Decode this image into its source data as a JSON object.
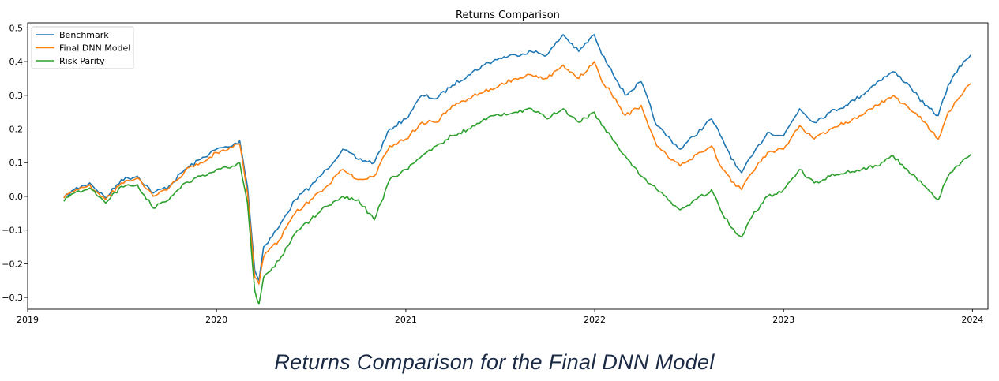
{
  "chart_data": {
    "type": "line",
    "title": "Returns Comparison",
    "xlabel": "",
    "ylabel": "",
    "x_axis_kind": "time",
    "xlim": [
      "2019-01-01",
      "2024-01-31"
    ],
    "ylim": [
      -0.335,
      0.515
    ],
    "x_ticks": [
      "2019-01-01",
      "2020-01-01",
      "2021-01-01",
      "2022-01-01",
      "2023-01-01",
      "2024-01-01"
    ],
    "x_tick_labels": [
      "2019",
      "2020",
      "2021",
      "2022",
      "2023",
      "2024"
    ],
    "y_ticks": [
      -0.3,
      -0.2,
      -0.1,
      0.0,
      0.1,
      0.2,
      0.3,
      0.4,
      0.5
    ],
    "y_tick_labels": [
      "−0.3",
      "−0.2",
      "−0.1",
      "0.0",
      "0.1",
      "0.2",
      "0.3",
      "0.4",
      "0.5"
    ],
    "grid": false,
    "legend_position": "top-left",
    "series": [
      {
        "name": "Benchmark",
        "color": "#1f77b4",
        "points": [
          [
            "2019-03-12",
            -0.005
          ],
          [
            "2019-04-01",
            0.02
          ],
          [
            "2019-05-01",
            0.04
          ],
          [
            "2019-06-01",
            -0.005
          ],
          [
            "2019-07-01",
            0.05
          ],
          [
            "2019-08-01",
            0.06
          ],
          [
            "2019-09-01",
            0.01
          ],
          [
            "2019-10-01",
            0.03
          ],
          [
            "2019-11-01",
            0.08
          ],
          [
            "2019-12-01",
            0.11
          ],
          [
            "2020-01-01",
            0.14
          ],
          [
            "2020-02-01",
            0.15
          ],
          [
            "2020-02-15",
            0.165
          ],
          [
            "2020-03-01",
            0.03
          ],
          [
            "2020-03-15",
            -0.22
          ],
          [
            "2020-03-23",
            -0.25
          ],
          [
            "2020-04-01",
            -0.15
          ],
          [
            "2020-05-01",
            -0.09
          ],
          [
            "2020-06-01",
            -0.01
          ],
          [
            "2020-07-01",
            0.03
          ],
          [
            "2020-08-01",
            0.08
          ],
          [
            "2020-09-01",
            0.14
          ],
          [
            "2020-10-01",
            0.11
          ],
          [
            "2020-11-01",
            0.1
          ],
          [
            "2020-12-01",
            0.2
          ],
          [
            "2021-01-01",
            0.23
          ],
          [
            "2021-02-01",
            0.3
          ],
          [
            "2021-03-01",
            0.29
          ],
          [
            "2021-04-01",
            0.33
          ],
          [
            "2021-05-01",
            0.36
          ],
          [
            "2021-06-01",
            0.39
          ],
          [
            "2021-07-01",
            0.41
          ],
          [
            "2021-08-01",
            0.42
          ],
          [
            "2021-09-01",
            0.43
          ],
          [
            "2021-10-01",
            0.42
          ],
          [
            "2021-11-01",
            0.48
          ],
          [
            "2021-12-01",
            0.43
          ],
          [
            "2021-12-31",
            0.48
          ],
          [
            "2022-01-15",
            0.42
          ],
          [
            "2022-02-01",
            0.38
          ],
          [
            "2022-03-01",
            0.3
          ],
          [
            "2022-04-01",
            0.34
          ],
          [
            "2022-05-01",
            0.21
          ],
          [
            "2022-06-15",
            0.14
          ],
          [
            "2022-08-15",
            0.23
          ],
          [
            "2022-09-01",
            0.18
          ],
          [
            "2022-10-01",
            0.09
          ],
          [
            "2022-10-12",
            0.07
          ],
          [
            "2022-11-01",
            0.12
          ],
          [
            "2022-12-01",
            0.19
          ],
          [
            "2023-01-01",
            0.18
          ],
          [
            "2023-02-01",
            0.26
          ],
          [
            "2023-03-01",
            0.22
          ],
          [
            "2023-04-01",
            0.25
          ],
          [
            "2023-05-01",
            0.27
          ],
          [
            "2023-06-01",
            0.3
          ],
          [
            "2023-07-01",
            0.34
          ],
          [
            "2023-08-01",
            0.37
          ],
          [
            "2023-09-01",
            0.33
          ],
          [
            "2023-10-01",
            0.27
          ],
          [
            "2023-10-27",
            0.24
          ],
          [
            "2023-11-15",
            0.33
          ],
          [
            "2023-12-15",
            0.4
          ],
          [
            "2023-12-29",
            0.42
          ]
        ]
      },
      {
        "name": "Final DNN Model",
        "color": "#ff7f0e",
        "points": [
          [
            "2019-03-12",
            -0.005
          ],
          [
            "2019-04-01",
            0.015
          ],
          [
            "2019-05-01",
            0.035
          ],
          [
            "2019-06-01",
            -0.01
          ],
          [
            "2019-07-01",
            0.04
          ],
          [
            "2019-08-01",
            0.055
          ],
          [
            "2019-09-01",
            0.0
          ],
          [
            "2019-10-01",
            0.025
          ],
          [
            "2019-11-01",
            0.075
          ],
          [
            "2019-12-01",
            0.1
          ],
          [
            "2020-01-01",
            0.13
          ],
          [
            "2020-02-01",
            0.145
          ],
          [
            "2020-02-15",
            0.155
          ],
          [
            "2020-03-01",
            0.01
          ],
          [
            "2020-03-15",
            -0.24
          ],
          [
            "2020-03-23",
            -0.26
          ],
          [
            "2020-04-01",
            -0.18
          ],
          [
            "2020-05-01",
            -0.13
          ],
          [
            "2020-06-01",
            -0.05
          ],
          [
            "2020-07-01",
            -0.01
          ],
          [
            "2020-08-01",
            0.03
          ],
          [
            "2020-09-01",
            0.08
          ],
          [
            "2020-10-01",
            0.05
          ],
          [
            "2020-11-01",
            0.06
          ],
          [
            "2020-12-01",
            0.15
          ],
          [
            "2021-01-01",
            0.17
          ],
          [
            "2021-02-01",
            0.22
          ],
          [
            "2021-03-01",
            0.22
          ],
          [
            "2021-04-01",
            0.27
          ],
          [
            "2021-05-01",
            0.29
          ],
          [
            "2021-06-01",
            0.31
          ],
          [
            "2021-07-01",
            0.33
          ],
          [
            "2021-08-01",
            0.35
          ],
          [
            "2021-09-01",
            0.36
          ],
          [
            "2021-10-01",
            0.35
          ],
          [
            "2021-11-01",
            0.39
          ],
          [
            "2021-12-01",
            0.35
          ],
          [
            "2021-12-31",
            0.4
          ],
          [
            "2022-01-15",
            0.34
          ],
          [
            "2022-02-01",
            0.31
          ],
          [
            "2022-03-01",
            0.24
          ],
          [
            "2022-04-01",
            0.27
          ],
          [
            "2022-05-01",
            0.15
          ],
          [
            "2022-06-15",
            0.09
          ],
          [
            "2022-08-15",
            0.15
          ],
          [
            "2022-09-01",
            0.09
          ],
          [
            "2022-10-01",
            0.03
          ],
          [
            "2022-10-12",
            0.02
          ],
          [
            "2022-11-01",
            0.07
          ],
          [
            "2022-12-01",
            0.13
          ],
          [
            "2023-01-01",
            0.14
          ],
          [
            "2023-02-01",
            0.21
          ],
          [
            "2023-03-01",
            0.17
          ],
          [
            "2023-04-01",
            0.2
          ],
          [
            "2023-05-01",
            0.22
          ],
          [
            "2023-06-01",
            0.24
          ],
          [
            "2023-07-01",
            0.27
          ],
          [
            "2023-08-01",
            0.3
          ],
          [
            "2023-09-01",
            0.26
          ],
          [
            "2023-10-01",
            0.22
          ],
          [
            "2023-10-27",
            0.17
          ],
          [
            "2023-11-15",
            0.25
          ],
          [
            "2023-12-15",
            0.31
          ],
          [
            "2023-12-29",
            0.335
          ]
        ]
      },
      {
        "name": "Risk Parity",
        "color": "#2ca02c",
        "points": [
          [
            "2019-03-12",
            -0.015
          ],
          [
            "2019-04-01",
            0.01
          ],
          [
            "2019-05-01",
            0.025
          ],
          [
            "2019-06-01",
            -0.02
          ],
          [
            "2019-07-01",
            0.03
          ],
          [
            "2019-08-01",
            0.035
          ],
          [
            "2019-09-01",
            -0.035
          ],
          [
            "2019-10-01",
            -0.01
          ],
          [
            "2019-11-01",
            0.04
          ],
          [
            "2019-12-01",
            0.06
          ],
          [
            "2020-01-01",
            0.08
          ],
          [
            "2020-02-01",
            0.09
          ],
          [
            "2020-02-15",
            0.1
          ],
          [
            "2020-03-01",
            -0.02
          ],
          [
            "2020-03-15",
            -0.28
          ],
          [
            "2020-03-23",
            -0.32
          ],
          [
            "2020-04-01",
            -0.24
          ],
          [
            "2020-05-01",
            -0.19
          ],
          [
            "2020-06-01",
            -0.11
          ],
          [
            "2020-07-01",
            -0.07
          ],
          [
            "2020-08-01",
            -0.03
          ],
          [
            "2020-09-01",
            0.0
          ],
          [
            "2020-10-01",
            -0.01
          ],
          [
            "2020-11-01",
            -0.07
          ],
          [
            "2020-12-01",
            0.05
          ],
          [
            "2021-01-01",
            0.08
          ],
          [
            "2021-02-01",
            0.12
          ],
          [
            "2021-03-01",
            0.15
          ],
          [
            "2021-04-01",
            0.18
          ],
          [
            "2021-05-01",
            0.2
          ],
          [
            "2021-06-01",
            0.23
          ],
          [
            "2021-07-01",
            0.24
          ],
          [
            "2021-08-01",
            0.25
          ],
          [
            "2021-09-01",
            0.26
          ],
          [
            "2021-10-01",
            0.23
          ],
          [
            "2021-11-01",
            0.26
          ],
          [
            "2021-12-01",
            0.22
          ],
          [
            "2021-12-31",
            0.25
          ],
          [
            "2022-01-15",
            0.21
          ],
          [
            "2022-02-01",
            0.18
          ],
          [
            "2022-03-01",
            0.12
          ],
          [
            "2022-04-01",
            0.06
          ],
          [
            "2022-05-01",
            0.02
          ],
          [
            "2022-06-15",
            -0.04
          ],
          [
            "2022-08-15",
            0.02
          ],
          [
            "2022-09-01",
            -0.04
          ],
          [
            "2022-10-01",
            -0.11
          ],
          [
            "2022-10-12",
            -0.12
          ],
          [
            "2022-11-01",
            -0.06
          ],
          [
            "2022-12-01",
            0.0
          ],
          [
            "2023-01-01",
            0.02
          ],
          [
            "2023-02-01",
            0.08
          ],
          [
            "2023-03-01",
            0.04
          ],
          [
            "2023-04-01",
            0.06
          ],
          [
            "2023-05-01",
            0.07
          ],
          [
            "2023-06-01",
            0.08
          ],
          [
            "2023-07-01",
            0.09
          ],
          [
            "2023-08-01",
            0.12
          ],
          [
            "2023-09-01",
            0.07
          ],
          [
            "2023-10-01",
            0.03
          ],
          [
            "2023-10-27",
            -0.01
          ],
          [
            "2023-11-15",
            0.06
          ],
          [
            "2023-12-15",
            0.11
          ],
          [
            "2023-12-29",
            0.125
          ]
        ]
      }
    ]
  },
  "caption": "Returns Comparison for the Final DNN Model"
}
